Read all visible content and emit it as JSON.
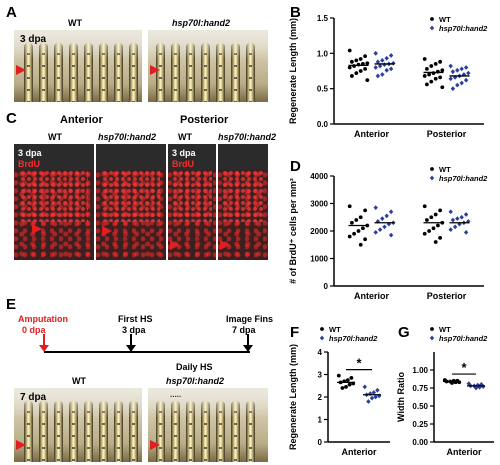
{
  "panels": {
    "a": "A",
    "b": "B",
    "c": "C",
    "d": "D",
    "e": "E",
    "f": "F",
    "g": "G"
  },
  "panel_a": {
    "wt_label": "WT",
    "mutant_label": "hsp70l:hand2",
    "dpa_label": "3 dpa"
  },
  "panel_c": {
    "anterior_label": "Anterior",
    "posterior_label": "Posterior",
    "wt_label": "WT",
    "mutant_label": "hsp70l:hand2",
    "dpa_label": "3 dpa",
    "stain_label": "BrdU"
  },
  "panel_e": {
    "amputation_label": "Amputation",
    "amputation_day": "0 dpa",
    "first_hs_label": "First HS",
    "first_hs_day": "3 dpa",
    "image_label": "Image Fins",
    "image_day": "7 dpa",
    "daily_hs_label": "Daily HS",
    "photo_dpa": "7 dpa",
    "wt_label": "WT",
    "mutant_label": "hsp70l:hand2",
    "dots_label": "....."
  },
  "colors": {
    "wt": "#000000",
    "mutant": "#2a3f9e",
    "arrow": "#e02020",
    "brdu": "#ff2a2a"
  },
  "chart_data": [
    {
      "id": "B",
      "type": "scatter",
      "ylabel": "Regenerate Length (mm)",
      "xlabel": "",
      "ylim": [
        0,
        1.5
      ],
      "yticks": [
        0.0,
        0.5,
        1.0,
        1.5
      ],
      "categories": [
        "Anterior",
        "Posterior"
      ],
      "legend": {
        "position": "top-right"
      },
      "series": [
        {
          "name": "WT",
          "group": "Anterior",
          "mean": 0.83,
          "values": [
            1.04,
            0.96,
            0.92,
            0.9,
            0.88,
            0.86,
            0.85,
            0.84,
            0.82,
            0.8,
            0.78,
            0.75,
            0.72,
            0.68,
            0.62
          ]
        },
        {
          "name": "hsp70l:hand2",
          "group": "Anterior",
          "mean": 0.85,
          "values": [
            1.0,
            0.97,
            0.93,
            0.9,
            0.88,
            0.86,
            0.85,
            0.84,
            0.82,
            0.8,
            0.78,
            0.76,
            0.7,
            0.68
          ]
        },
        {
          "name": "WT",
          "group": "Posterior",
          "mean": 0.73,
          "values": [
            0.92,
            0.88,
            0.85,
            0.82,
            0.78,
            0.76,
            0.74,
            0.72,
            0.7,
            0.68,
            0.66,
            0.64,
            0.6,
            0.56,
            0.52
          ]
        },
        {
          "name": "hsp70l:hand2",
          "group": "Posterior",
          "mean": 0.68,
          "values": [
            0.82,
            0.8,
            0.78,
            0.76,
            0.74,
            0.72,
            0.7,
            0.68,
            0.66,
            0.64,
            0.62,
            0.58,
            0.55,
            0.5
          ]
        }
      ]
    },
    {
      "id": "D",
      "type": "scatter",
      "ylabel": "# of BrdU⁺ cells per mm²",
      "xlabel": "",
      "ylim": [
        0,
        4000
      ],
      "yticks": [
        0,
        1000,
        2000,
        3000,
        4000
      ],
      "categories": [
        "Anterior",
        "Posterior"
      ],
      "legend": {
        "position": "top-right"
      },
      "series": [
        {
          "name": "WT",
          "group": "Anterior",
          "mean": 2200,
          "values": [
            2900,
            2750,
            2500,
            2400,
            2300,
            2200,
            2100,
            2000,
            1900,
            1800,
            1700,
            1500
          ]
        },
        {
          "name": "hsp70l:hand2",
          "group": "Anterior",
          "mean": 2300,
          "values": [
            2850,
            2700,
            2550,
            2450,
            2350,
            2300,
            2250,
            2150,
            2050,
            1950,
            1850
          ]
        },
        {
          "name": "WT",
          "group": "Posterior",
          "mean": 2300,
          "values": [
            2900,
            2750,
            2600,
            2500,
            2400,
            2300,
            2200,
            2100,
            2000,
            1900,
            1750,
            1600
          ]
        },
        {
          "name": "hsp70l:hand2",
          "group": "Posterior",
          "mean": 2300,
          "values": [
            2700,
            2600,
            2500,
            2450,
            2400,
            2350,
            2300,
            2250,
            2150,
            2050,
            1950
          ]
        }
      ]
    },
    {
      "id": "F",
      "type": "scatter",
      "ylabel": "Regenerate Length (mm)",
      "xlabel": "",
      "ylim": [
        0,
        4
      ],
      "yticks": [
        0,
        1,
        2,
        3,
        4
      ],
      "categories": [
        "Anterior"
      ],
      "annotation": "*",
      "legend": {
        "position": "top-right"
      },
      "series": [
        {
          "name": "WT",
          "group": "Anterior",
          "mean": 2.65,
          "values": [
            2.95,
            2.85,
            2.75,
            2.7,
            2.65,
            2.6,
            2.55,
            2.45,
            2.4
          ]
        },
        {
          "name": "hsp70l:hand2",
          "group": "Anterior",
          "mean": 2.1,
          "values": [
            2.45,
            2.3,
            2.2,
            2.15,
            2.1,
            2.05,
            2.0,
            1.95,
            1.8
          ]
        }
      ]
    },
    {
      "id": "G",
      "type": "scatter",
      "ylabel": "Width Ratio",
      "xlabel": "",
      "ylim": [
        0,
        1.25
      ],
      "yticks": [
        0.0,
        0.25,
        0.5,
        0.75,
        1.0
      ],
      "categories": [
        "Anterior"
      ],
      "annotation": "*",
      "legend": {
        "position": "top-right"
      },
      "series": [
        {
          "name": "WT",
          "group": "Anterior",
          "mean": 0.84,
          "values": [
            0.86,
            0.85,
            0.85,
            0.84,
            0.84,
            0.83,
            0.83,
            0.82
          ]
        },
        {
          "name": "hsp70l:hand2",
          "group": "Anterior",
          "mean": 0.78,
          "values": [
            0.81,
            0.8,
            0.79,
            0.78,
            0.78,
            0.77,
            0.76,
            0.75
          ]
        }
      ]
    }
  ]
}
